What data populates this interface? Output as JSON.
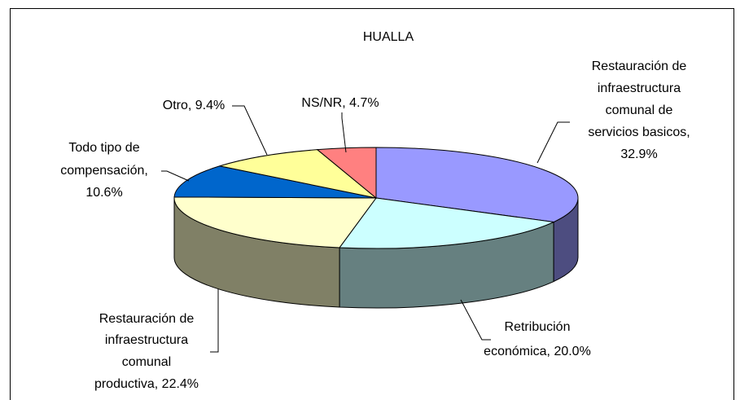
{
  "chart_data": {
    "type": "pie3d",
    "title": "HUALLA",
    "labels": [
      [
        "Restauración de",
        "infraestructura",
        "comunal de",
        "servicios basicos,",
        "32.9%"
      ],
      [
        "Retribución",
        "económica, 20.0%"
      ],
      [
        "Restauración de",
        "infraestructura",
        "comunal",
        "productiva, 22.4%"
      ],
      [
        "Todo tipo  de",
        "compensación,",
        "10.6%"
      ],
      [
        "Otro, 9.4%"
      ],
      [
        "NS/NR, 4.7%"
      ]
    ],
    "values": [
      32.9,
      20.0,
      22.4,
      10.6,
      9.4,
      4.7
    ],
    "colors": [
      "#9999ff",
      "#ccffff",
      "#ffffcc",
      "#0066cc",
      "#ffff99",
      "#ff8080"
    ]
  }
}
